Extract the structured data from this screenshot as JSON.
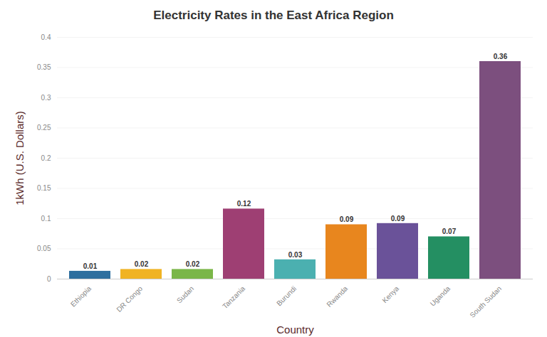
{
  "chart_data": {
    "type": "bar",
    "title": "Electricity Rates in the East Africa Region",
    "x_label": "Country",
    "y_label": "1kWh (U.S. Dollars)",
    "categories": [
      "Ethiopia",
      "DR Congo",
      "Sudan",
      "Tanzania",
      "Burundi",
      "Rwanda",
      "Kenya",
      "Uganda",
      "South Sudan"
    ],
    "values": [
      0.013,
      0.016,
      0.016,
      0.116,
      0.032,
      0.09,
      0.092,
      0.07,
      0.36
    ],
    "value_labels": [
      "0.01",
      "0.02",
      "0.02",
      "0.12",
      "0.03",
      "0.09",
      "0.09",
      "0.07",
      "0.36"
    ],
    "colors": [
      "#2e6f9e",
      "#f0b323",
      "#7ab648",
      "#9e3f73",
      "#4bb0b0",
      "#e8861e",
      "#6a5299",
      "#248f62",
      "#7c4f7e"
    ],
    "ylim": [
      0,
      0.4
    ],
    "yticks": [
      0,
      0.05,
      0.1,
      0.15,
      0.2,
      0.25,
      0.3,
      0.35,
      0.4
    ],
    "grid": true,
    "data_labels": true
  }
}
